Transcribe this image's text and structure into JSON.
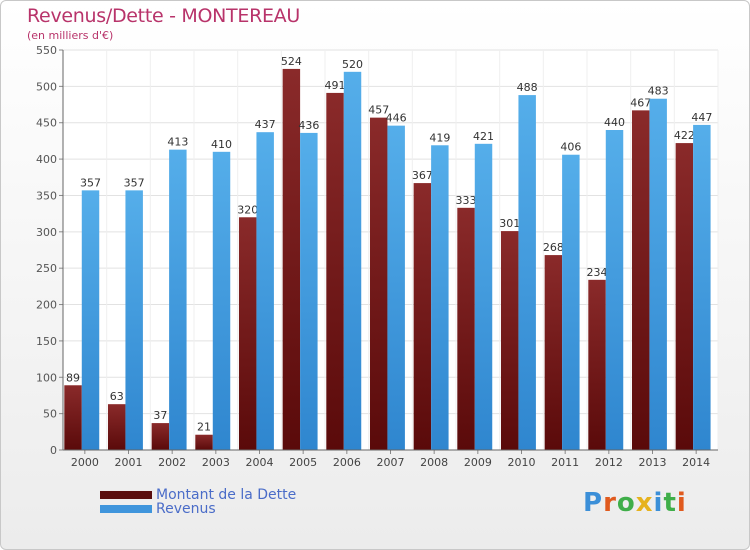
{
  "header": {
    "title": "Revenus/Dette - MONTEREAU",
    "subtitle": "(en milliers d'€)"
  },
  "chart_data": {
    "type": "bar",
    "categories": [
      "2000",
      "2001",
      "2002",
      "2003",
      "2004",
      "2005",
      "2006",
      "2007",
      "2008",
      "2009",
      "2010",
      "2011",
      "2012",
      "2013",
      "2014"
    ],
    "series": [
      {
        "name": "Montant de la Dette",
        "color": "#7a1a1a",
        "values": [
          89,
          63,
          37,
          21,
          320,
          524,
          491,
          457,
          367,
          333,
          301,
          268,
          234,
          467,
          422
        ],
        "labels": [
          "89",
          "63",
          "37",
          "21",
          "320",
          "524",
          "491",
          "457",
          "367",
          "333",
          "301",
          "268",
          "234",
          "467",
          "422"
        ]
      },
      {
        "name": "Revenus",
        "color": "#4aa3e6",
        "values": [
          357,
          357,
          413,
          410,
          437,
          436,
          520,
          446,
          419,
          421,
          488,
          406,
          440,
          483,
          447
        ],
        "labels": [
          "357",
          "357",
          "413",
          "410",
          "437",
          "436",
          "520",
          "446",
          "419",
          "421",
          "488",
          "406",
          "440",
          "483",
          "447"
        ]
      }
    ],
    "ylim": [
      0,
      550
    ],
    "yticks": [
      0,
      50,
      100,
      150,
      200,
      250,
      300,
      350,
      400,
      450,
      500,
      550
    ],
    "grid": true,
    "legend_position": "bottom-left"
  },
  "legend": {
    "items": [
      {
        "label": "Montant de la Dette",
        "color": "#5a0f0f"
      },
      {
        "label": "Revenus",
        "color": "#3f95dc"
      }
    ]
  },
  "logo": {
    "letters": [
      "P",
      "r",
      "o",
      "x",
      "i",
      "t",
      "i"
    ],
    "colors": [
      "#3b8fd8",
      "#e05a1e",
      "#3fae49",
      "#e6b21e",
      "#3b8fd8",
      "#3fae49",
      "#e05a1e"
    ]
  }
}
